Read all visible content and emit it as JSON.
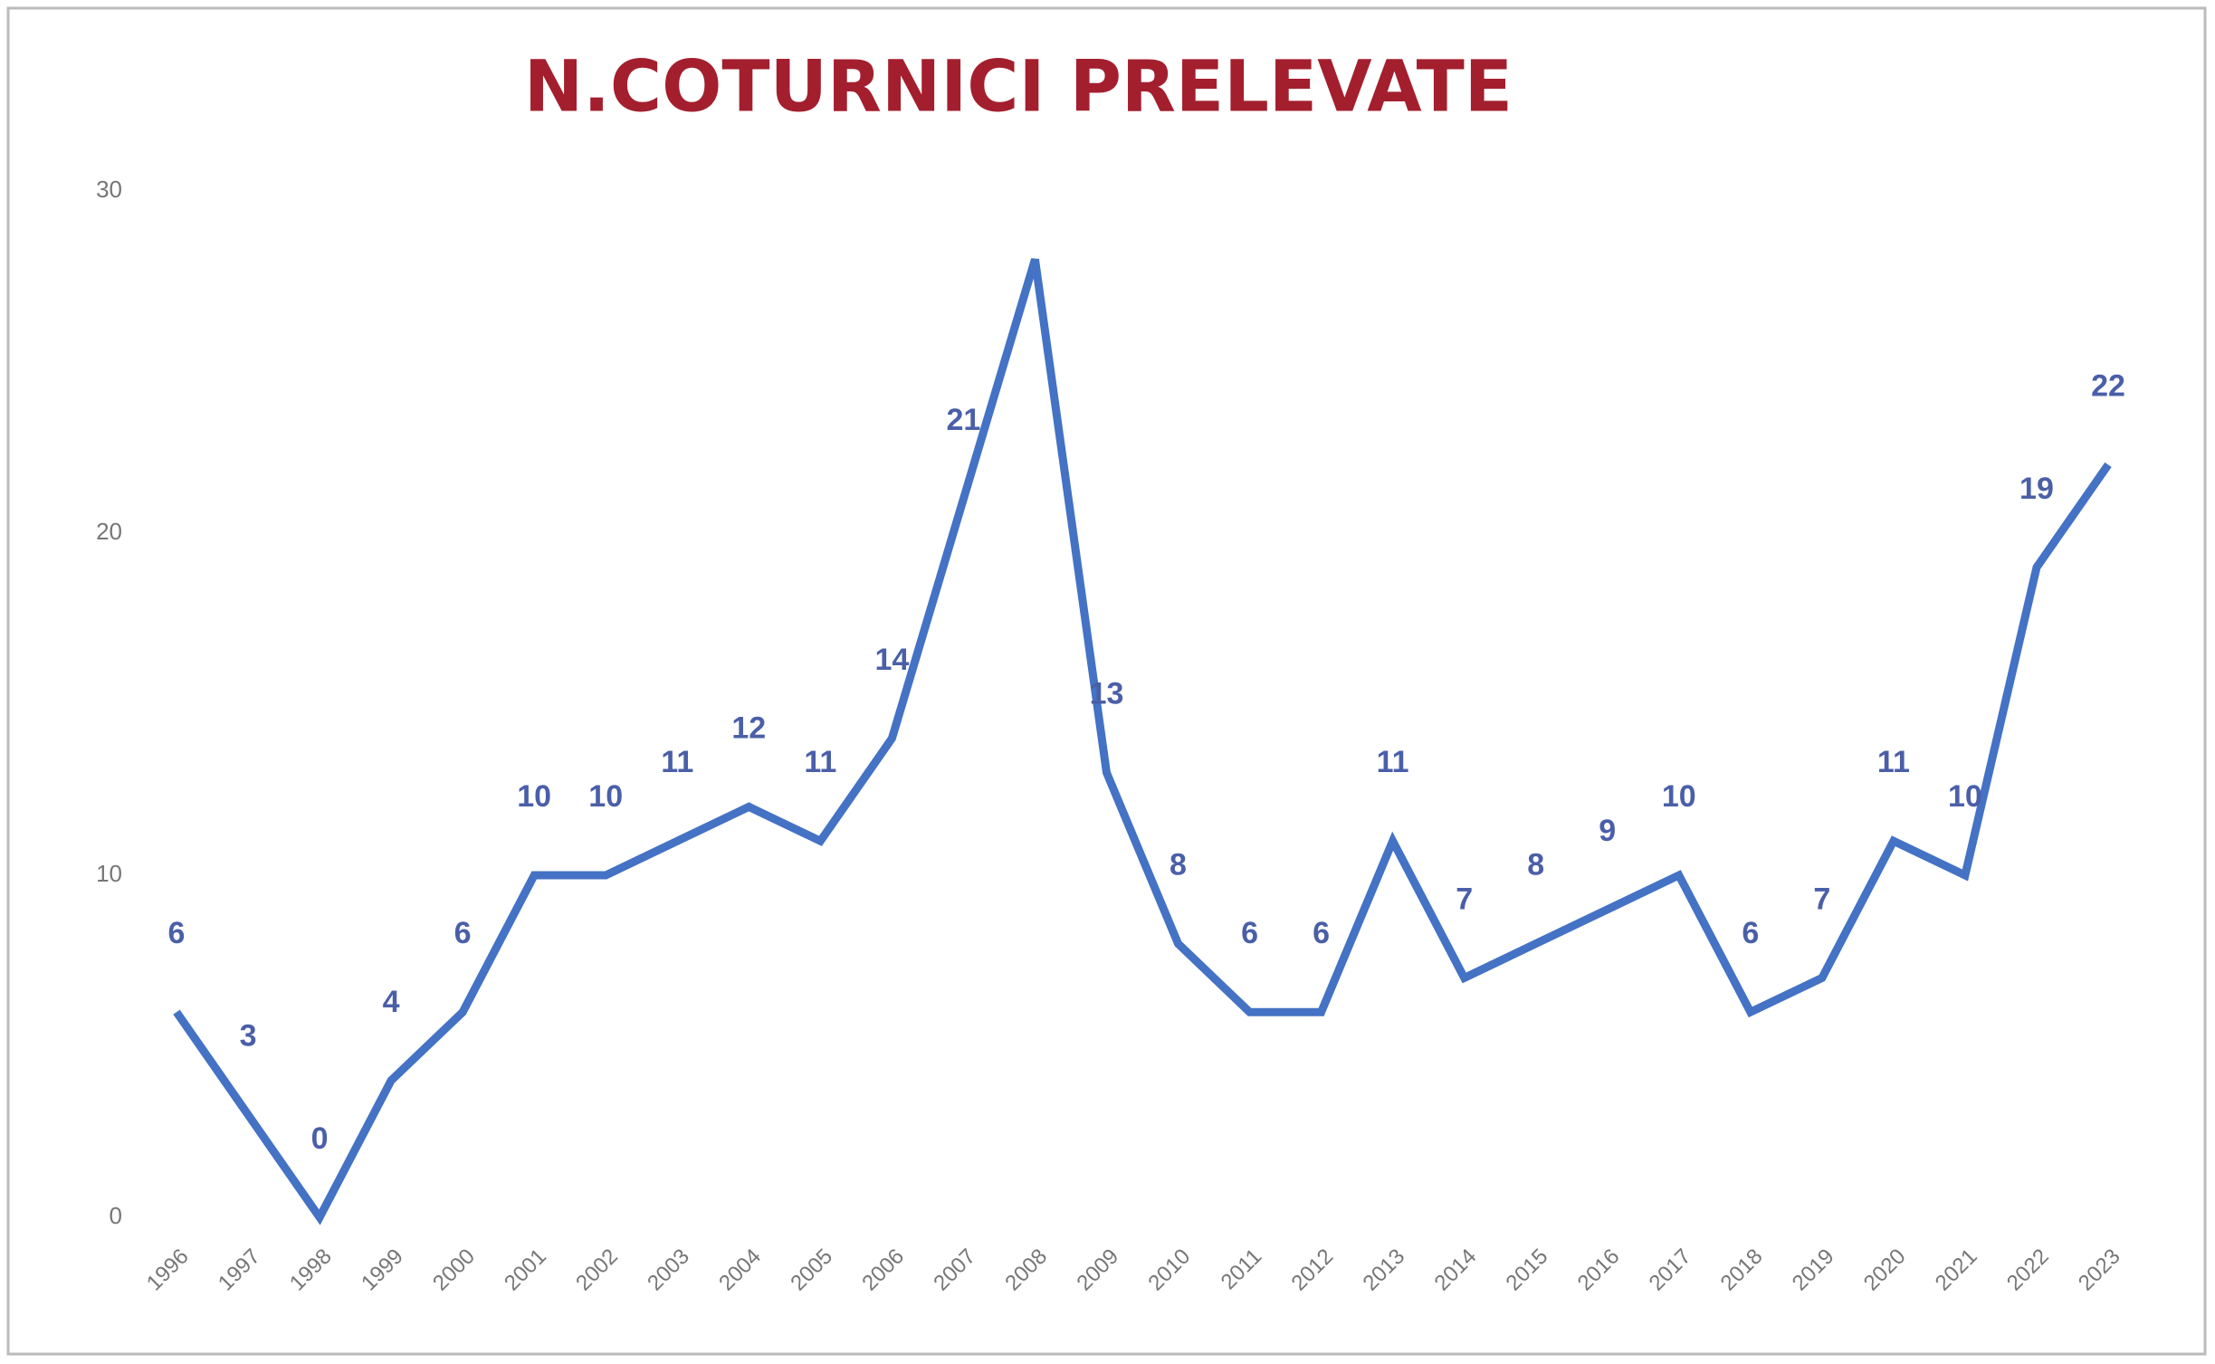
{
  "chart_data": {
    "type": "line",
    "title": "N.COTURNICI PRELEVATE",
    "categories": [
      "1996",
      "1997",
      "1998",
      "1999",
      "2000",
      "2001",
      "2002",
      "2003",
      "2004",
      "2005",
      "2006",
      "2007",
      "2008",
      "2009",
      "2010",
      "2011",
      "2012",
      "2013",
      "2014",
      "2015",
      "2016",
      "2017",
      "2018",
      "2019",
      "2020",
      "2021",
      "2022",
      "2023"
    ],
    "series": [
      {
        "name": "N.COTURNICI PRELEVATE",
        "color": "#4472c4",
        "values": [
          6,
          3,
          0,
          4,
          6,
          10,
          10,
          11,
          12,
          11,
          14,
          21,
          28,
          13,
          8,
          6,
          6,
          11,
          7,
          8,
          9,
          10,
          6,
          7,
          11,
          10,
          19,
          22
        ],
        "value_labels": [
          "6",
          "3",
          "0",
          "4",
          "6",
          "10",
          "10",
          "11",
          "12",
          "11",
          "14",
          "21",
          null,
          "13",
          "8",
          "6",
          "6",
          "11",
          "7",
          "8",
          "9",
          "10",
          "6",
          "7",
          "11",
          "10",
          "19",
          "22"
        ]
      }
    ],
    "ylim": [
      0,
      30
    ],
    "yticks": [
      0,
      10,
      20,
      30
    ],
    "grid": false
  }
}
